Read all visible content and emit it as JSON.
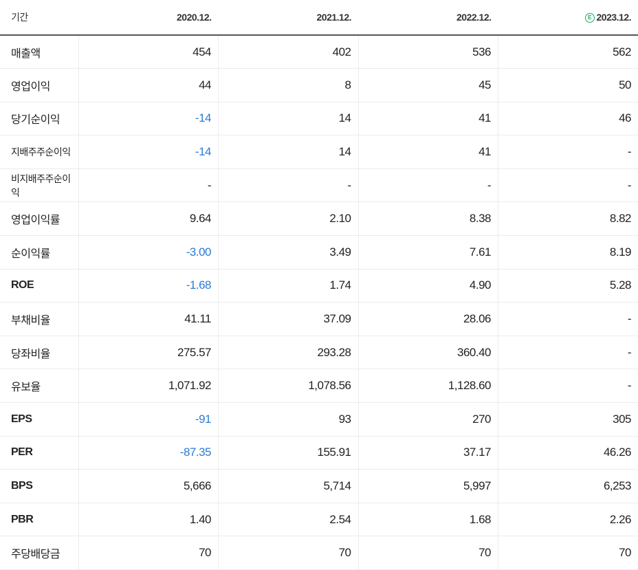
{
  "header": {
    "label": "기간",
    "periods": [
      "2020.12.",
      "2021.12.",
      "2022.12.",
      "2023.12."
    ],
    "estimate_icon": "E"
  },
  "rows": [
    {
      "label": "매출액",
      "values": [
        "454",
        "402",
        "536",
        "562"
      ]
    },
    {
      "label": "영업이익",
      "values": [
        "44",
        "8",
        "45",
        "50"
      ]
    },
    {
      "label": "당기순이익",
      "values": [
        "-14",
        "14",
        "41",
        "46"
      ]
    },
    {
      "label": "지배주주순이익",
      "values": [
        "-14",
        "14",
        "41",
        "-"
      ]
    },
    {
      "label": "비지배주주순이익",
      "values": [
        "-",
        "-",
        "-",
        "-"
      ]
    },
    {
      "label": "영업이익률",
      "values": [
        "9.64",
        "2.10",
        "8.38",
        "8.82"
      ]
    },
    {
      "label": "순이익률",
      "values": [
        "-3.00",
        "3.49",
        "7.61",
        "8.19"
      ]
    },
    {
      "label": "ROE",
      "values": [
        "-1.68",
        "1.74",
        "4.90",
        "5.28"
      ]
    },
    {
      "label": "부채비율",
      "values": [
        "41.11",
        "37.09",
        "28.06",
        "-"
      ]
    },
    {
      "label": "당좌비율",
      "values": [
        "275.57",
        "293.28",
        "360.40",
        "-"
      ]
    },
    {
      "label": "유보율",
      "values": [
        "1,071.92",
        "1,078.56",
        "1,128.60",
        "-"
      ]
    },
    {
      "label": "EPS",
      "values": [
        "-91",
        "93",
        "270",
        "305"
      ]
    },
    {
      "label": "PER",
      "values": [
        "-87.35",
        "155.91",
        "37.17",
        "46.26"
      ]
    },
    {
      "label": "BPS",
      "values": [
        "5,666",
        "5,714",
        "5,997",
        "6,253"
      ]
    },
    {
      "label": "PBR",
      "values": [
        "1.40",
        "2.54",
        "1.68",
        "2.26"
      ]
    },
    {
      "label": "주당배당금",
      "values": [
        "70",
        "70",
        "70",
        "70"
      ]
    }
  ],
  "colors": {
    "negative": "#2b7bd6",
    "estimate_icon": "#1aaa55"
  }
}
